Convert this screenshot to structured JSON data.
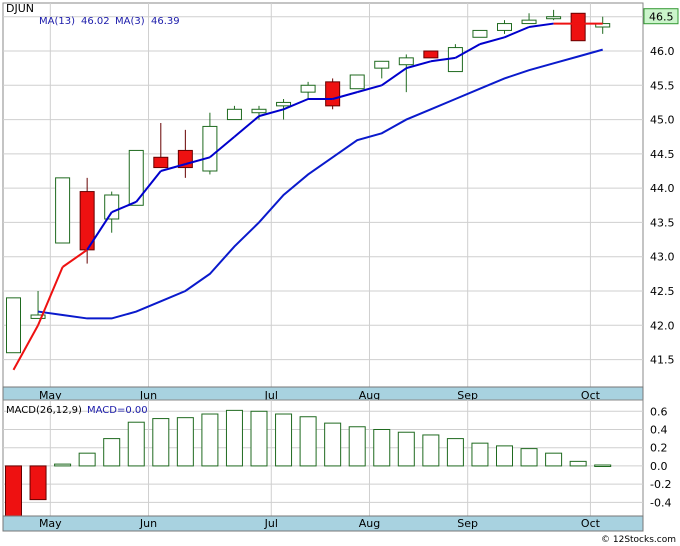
{
  "chart_data": {
    "type": "candlestick",
    "ticker": "DJUN",
    "legend": {
      "ma13_label": "MA(13)",
      "ma13_value": "46.02",
      "ma3_label": "MA(3)",
      "ma3_value": "46.39"
    },
    "last_price_label": "46.5",
    "price_ticks": [
      "41.5",
      "42.0",
      "42.5",
      "43.0",
      "43.5",
      "44.0",
      "44.5",
      "45.0",
      "45.5",
      "46.0",
      "46.5"
    ],
    "months": [
      "May",
      "Jun",
      "Jul",
      "Aug",
      "Sep",
      "Oct"
    ],
    "month_positions": [
      1.5,
      5.5,
      10.5,
      14.5,
      18.5,
      23.5
    ],
    "candles": [
      {
        "o": 41.6,
        "h": 42.4,
        "l": 41.6,
        "c": 42.4
      },
      {
        "o": 42.1,
        "h": 42.5,
        "l": 42.1,
        "c": 42.15
      },
      {
        "o": 43.2,
        "h": 44.15,
        "l": 43.2,
        "c": 44.15
      },
      {
        "o": 43.95,
        "h": 44.15,
        "l": 42.9,
        "c": 43.1
      },
      {
        "o": 43.55,
        "h": 43.95,
        "l": 43.35,
        "c": 43.9
      },
      {
        "o": 43.75,
        "h": 44.55,
        "l": 43.75,
        "c": 44.55
      },
      {
        "o": 44.45,
        "h": 44.95,
        "l": 44.3,
        "c": 44.3
      },
      {
        "o": 44.55,
        "h": 44.85,
        "l": 44.15,
        "c": 44.3
      },
      {
        "o": 44.25,
        "h": 45.1,
        "l": 44.2,
        "c": 44.9
      },
      {
        "o": 45.0,
        "h": 45.2,
        "l": 45.0,
        "c": 45.15
      },
      {
        "o": 45.1,
        "h": 45.2,
        "l": 45.0,
        "c": 45.15
      },
      {
        "o": 45.2,
        "h": 45.3,
        "l": 45.0,
        "c": 45.25
      },
      {
        "o": 45.4,
        "h": 45.55,
        "l": 45.3,
        "c": 45.5
      },
      {
        "o": 45.55,
        "h": 45.6,
        "l": 45.15,
        "c": 45.2
      },
      {
        "o": 45.45,
        "h": 45.65,
        "l": 45.45,
        "c": 45.65
      },
      {
        "o": 45.75,
        "h": 45.85,
        "l": 45.6,
        "c": 45.85
      },
      {
        "o": 45.8,
        "h": 45.95,
        "l": 45.4,
        "c": 45.9
      },
      {
        "o": 46.0,
        "h": 46.0,
        "l": 45.9,
        "c": 45.9
      },
      {
        "o": 45.7,
        "h": 46.1,
        "l": 45.7,
        "c": 46.05
      },
      {
        "o": 46.2,
        "h": 46.25,
        "l": 46.2,
        "c": 46.3
      },
      {
        "o": 46.3,
        "h": 46.45,
        "l": 46.25,
        "c": 46.4
      },
      {
        "o": 46.4,
        "h": 46.55,
        "l": 46.4,
        "c": 46.45
      },
      {
        "o": 46.5,
        "h": 46.6,
        "l": 46.45,
        "c": 46.5
      },
      {
        "o": 46.55,
        "h": 46.55,
        "l": 46.15,
        "c": 46.15
      },
      {
        "o": 46.35,
        "h": 46.5,
        "l": 46.25,
        "c": 46.4
      }
    ],
    "ma3": [
      41.35,
      42.0,
      42.85,
      43.1,
      43.65,
      43.8,
      44.25,
      44.35,
      44.45,
      44.75,
      45.05,
      45.15,
      45.3,
      45.3,
      45.4,
      45.5,
      45.75,
      45.85,
      45.9,
      46.1,
      46.2,
      46.35,
      46.4,
      null,
      46.4
    ],
    "ma3_red_segments": [
      [
        0,
        3
      ],
      [
        22,
        23
      ]
    ],
    "ma13": [
      null,
      42.2,
      42.15,
      42.1,
      42.1,
      42.2,
      42.35,
      42.5,
      42.75,
      43.15,
      43.5,
      43.9,
      44.2,
      44.45,
      44.7,
      44.8,
      45.0,
      45.15,
      45.3,
      45.45,
      45.6,
      45.72,
      45.82,
      45.92,
      46.02
    ],
    "ylim": [
      41.1,
      46.7
    ],
    "macd": {
      "label": "MACD(26,12,9)",
      "value_label": "MACD=0.00",
      "ticks": [
        "0.6",
        "0.4",
        "0.2",
        "0.0",
        "-0.2",
        "-0.4"
      ],
      "ylim": [
        -0.55,
        0.68
      ],
      "values": [
        -0.55,
        -0.37,
        0.02,
        0.14,
        0.3,
        0.48,
        0.52,
        0.53,
        0.57,
        0.61,
        0.6,
        0.57,
        0.54,
        0.47,
        0.43,
        0.4,
        0.37,
        0.34,
        0.3,
        0.25,
        0.22,
        0.19,
        0.14,
        0.05,
        0.01
      ]
    },
    "footer": "© 12Stocks.com"
  },
  "colors": {
    "up_fill": "#ffffff",
    "up_stroke": "#1f6a1f",
    "down_fill": "#ee1111",
    "down_stroke": "#660000",
    "ma3": "#0000cc",
    "ma3_red": "#ee1111",
    "ma13": "#0a1acc",
    "grid": "#cfcfcf",
    "axis_band": "#a8d2e0",
    "label_blue": "#1a1aaa",
    "last_price_bg": "#ccf5cc"
  }
}
